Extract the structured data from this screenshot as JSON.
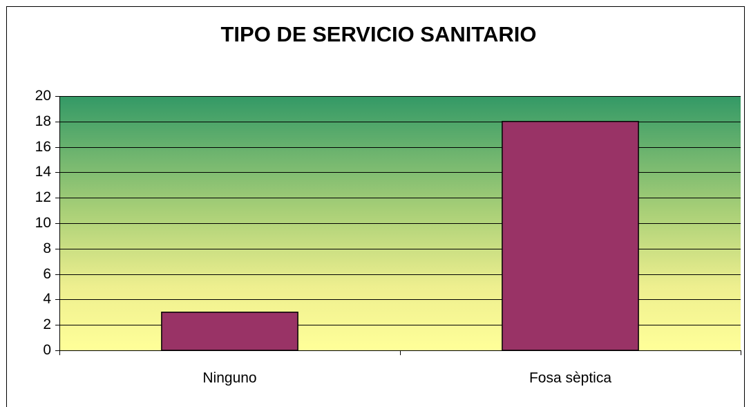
{
  "chart_data": {
    "type": "bar",
    "title": "TIPO DE SERVICIO SANITARIO",
    "categories": [
      "Ninguno",
      "Fosa sèptica"
    ],
    "values": [
      3,
      18
    ],
    "color": "#993366",
    "ylim": [
      0,
      20
    ],
    "yticks": [
      0,
      2,
      4,
      6,
      8,
      10,
      12,
      14,
      16,
      18,
      20
    ],
    "grid": true
  }
}
